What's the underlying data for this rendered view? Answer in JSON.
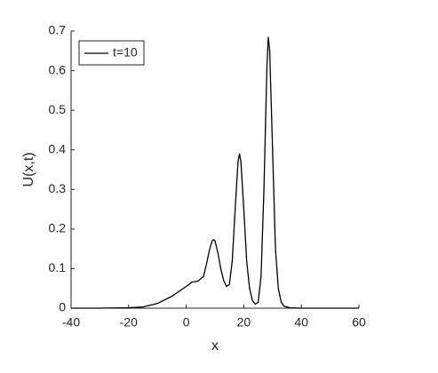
{
  "chart_data": {
    "type": "line",
    "xlabel": "x",
    "ylabel": "U(x,t)",
    "x": [
      -40,
      -30,
      -20,
      -15,
      -10,
      -5,
      0,
      2,
      4,
      6,
      7,
      8,
      9,
      9.5,
      10,
      11,
      12,
      13,
      14,
      15,
      16,
      17,
      18,
      18.5,
      19,
      20,
      21,
      22,
      23,
      24,
      25,
      26,
      27,
      28,
      28.5,
      29,
      30,
      31,
      32,
      33,
      34,
      36,
      40,
      50,
      60
    ],
    "series": [
      {
        "name": "t=10",
        "color": "#000000",
        "values": [
          0,
          0,
          0.001,
          0.003,
          0.012,
          0.03,
          0.055,
          0.066,
          0.068,
          0.08,
          0.11,
          0.145,
          0.17,
          0.173,
          0.17,
          0.14,
          0.1,
          0.07,
          0.055,
          0.06,
          0.12,
          0.25,
          0.37,
          0.39,
          0.37,
          0.25,
          0.12,
          0.05,
          0.02,
          0.01,
          0.015,
          0.08,
          0.3,
          0.6,
          0.685,
          0.65,
          0.4,
          0.15,
          0.05,
          0.015,
          0.005,
          0.001,
          0,
          0,
          0
        ]
      }
    ],
    "xlim": [
      -40,
      60
    ],
    "xticks": [
      -40,
      -20,
      0,
      20,
      40,
      60
    ],
    "ylim": [
      0,
      0.7
    ],
    "yticks": [
      0,
      0.1,
      0.2,
      0.3,
      0.4,
      0.5,
      0.6,
      0.7
    ],
    "grid": false,
    "legend": "upper left"
  }
}
